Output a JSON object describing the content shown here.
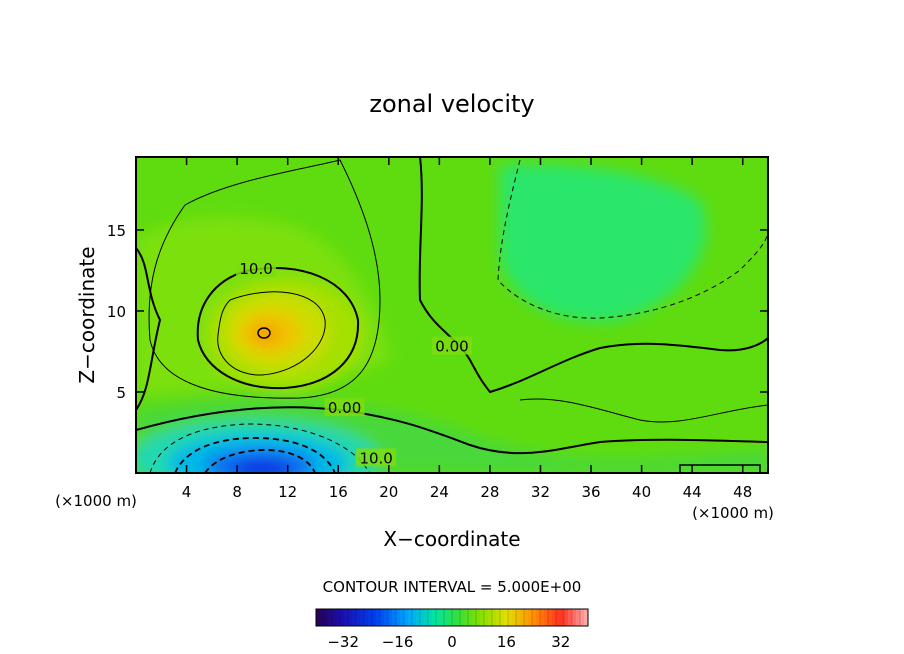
{
  "chart_data": {
    "type": "heatmap",
    "title": "zonal velocity",
    "xlabel": "X−coordinate",
    "ylabel": "Z−coordinate",
    "x_unit_left": "(×1000 m)",
    "x_unit_right": "(×1000 m)",
    "xlim": [
      0,
      50
    ],
    "ylim": [
      0,
      19.5
    ],
    "x_ticks": [
      4,
      8,
      12,
      16,
      20,
      24,
      28,
      32,
      36,
      40,
      44,
      48
    ],
    "y_ticks": [
      5,
      10,
      15
    ],
    "contour_interval_text": "CONTOUR INTERVAL = 5.000E+00",
    "colorbar": {
      "range": [
        -40,
        40
      ],
      "ticks": [
        -32,
        -16,
        0,
        16,
        32
      ],
      "tick_labels": [
        "−32",
        "−16",
        "0",
        "16",
        "32"
      ]
    },
    "contour_labels": [
      {
        "text": "10.0",
        "x": 9.5,
        "z": 12.6
      },
      {
        "text": "0.00",
        "x": 16.5,
        "z": 4.0
      },
      {
        "text": "10.0",
        "x": 19.0,
        "z": 0.9
      },
      {
        "text": "0.00",
        "x": 25.0,
        "z": 7.8
      }
    ],
    "features": [
      {
        "x": 10,
        "z": 9,
        "value": 14,
        "kind": "positive jet maximum"
      },
      {
        "x": 10,
        "z": 1,
        "value": -30,
        "kind": "negative near-surface minimum"
      },
      {
        "x": 30,
        "z": 14,
        "value": -4,
        "kind": "weak negative region"
      }
    ]
  }
}
